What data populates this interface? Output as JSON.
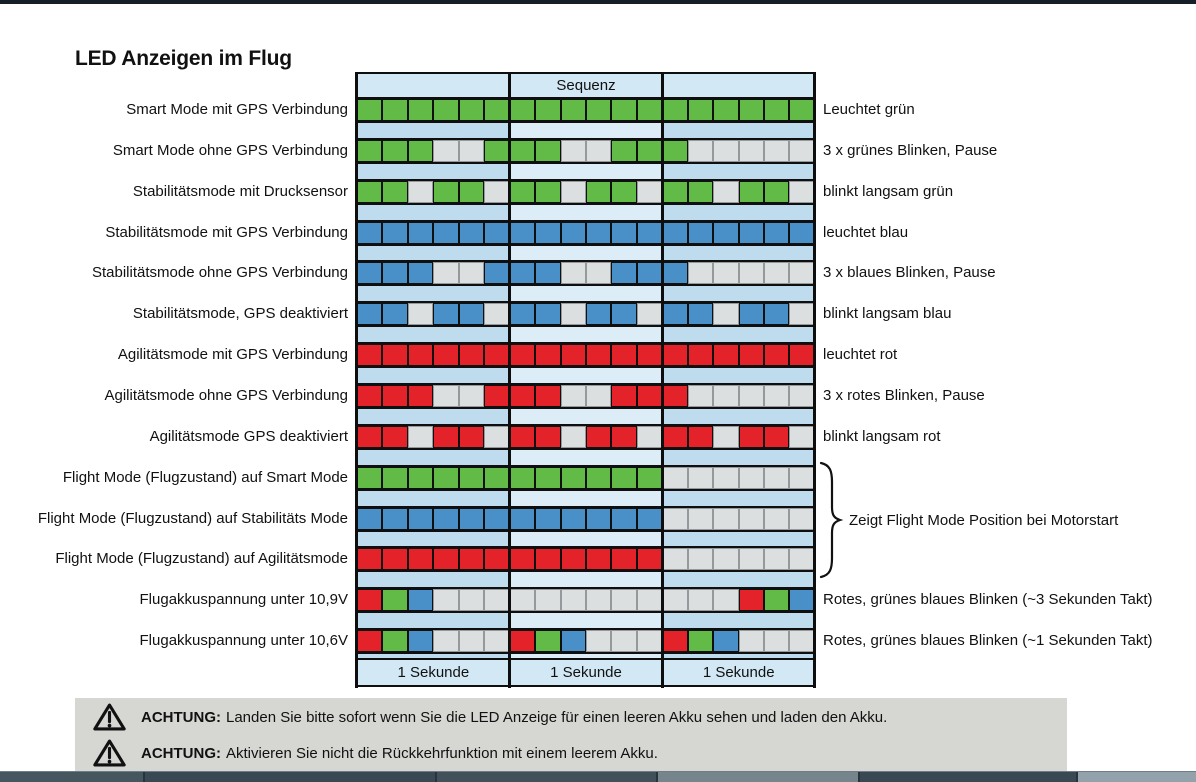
{
  "page": {
    "title": "LED Anzeigen im Flug"
  },
  "sequence_table": {
    "header": "Sequenz",
    "footer_cells": [
      "1 Sekunde",
      "1 Sekunde",
      "1 Sekunde"
    ],
    "seconds": 3,
    "cells_per_second": 6,
    "colors": {
      "G": "#62bb46",
      "B": "#4a90c8",
      "R": "#e32229",
      "off_fill": "#dcdfe0",
      "off_border": "#97999b",
      "column_shade_dark": "#bfdcee",
      "column_shade_light": "#ddedf8",
      "header_footer_fill": "#d2e8f5"
    },
    "rows": [
      {
        "label": "Smart Mode mit GPS Verbindung",
        "pattern": "GGGGGGGGGGGGGGGGGG",
        "description": "Leuchtet grün"
      },
      {
        "label": "Smart Mode ohne GPS Verbindung",
        "pattern": "GGGXXGGGXXGGGXXXXX",
        "description": "3 x grünes Blinken, Pause"
      },
      {
        "label": "Stabilitätsmode mit Drucksensor",
        "pattern": "GGXGGXGGXGGXGGXGGX",
        "description": "blinkt langsam grün"
      },
      {
        "label": "Stabilitätsmode mit GPS Verbindung",
        "pattern": "BBBBBBBBBBBBBBBBBB",
        "description": "leuchtet blau"
      },
      {
        "label": "Stabilitätsmode ohne GPS Verbindung",
        "pattern": "BBBXXBBBXXBBBXXXXX",
        "description": "3 x blaues Blinken, Pause"
      },
      {
        "label": "Stabilitätsmode, GPS deaktiviert",
        "pattern": "BBXBBXBBXBBXBBXBBX",
        "description": "blinkt langsam blau"
      },
      {
        "label": "Agilitätsmode mit GPS Verbindung",
        "pattern": "RRRRRRRRRRRRRRRRRR",
        "description": "leuchtet rot"
      },
      {
        "label": "Agilitätsmode ohne GPS Verbindung",
        "pattern": "RRRXXRRRXXRRRXXXXX",
        "description": "3 x rotes Blinken, Pause"
      },
      {
        "label": "Agilitätsmode GPS deaktiviert",
        "pattern": "RRXRRXRRXRRXRRXRRX",
        "description": "blinkt langsam rot"
      },
      {
        "label": "Flight Mode (Flugzustand) auf Smart Mode",
        "pattern": "GGGGGGGGGGGGXXXXXX",
        "description": ""
      },
      {
        "label": "Flight Mode (Flugzustand) auf Stabilitäts Mode",
        "pattern": "BBBBBBBBBBBBXXXXXX",
        "description": ""
      },
      {
        "label": "Flight Mode (Flugzustand) auf Agilitätsmode",
        "pattern": "RRRRRRRRRRRRXXXXXX",
        "description": ""
      },
      {
        "label": "Flugakkuspannung unter 10,9V",
        "pattern": "RGBXXXXXXXXXXXXRGB",
        "description": "Rotes, grünes blaues Blinken (~3 Sekunden Takt)"
      },
      {
        "label": "Flugakkuspannung unter 10,6V",
        "pattern": "RGBXXXRGBXXXRGBXXX",
        "description": "Rotes, grünes blaues Blinken (~1 Sekunden Takt)"
      }
    ],
    "group_note": "Zeigt Flight Mode Position bei Motorstart"
  },
  "warnings": [
    {
      "icon": "warning-triangle",
      "label": "ACHTUNG:",
      "text": "Landen Sie bitte sofort wenn Sie die LED Anzeige für einen leeren Akku sehen und laden den Akku."
    },
    {
      "icon": "warning-triangle",
      "label": "ACHTUNG:",
      "text": "Aktivieren Sie nicht die Rückkehrfunktion mit einem leerem Akku."
    }
  ]
}
